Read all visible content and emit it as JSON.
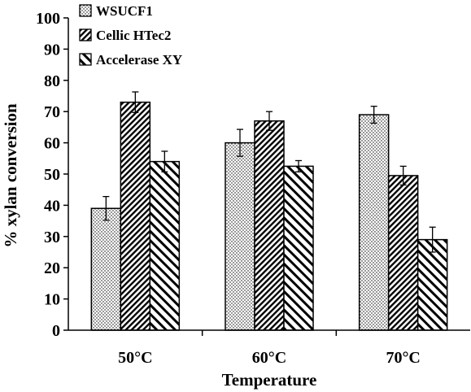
{
  "chart_data": {
    "type": "bar",
    "title": "",
    "xlabel": "Temperature",
    "ylabel": "% xylan conversion",
    "ylim": [
      0,
      100
    ],
    "yticks": [
      0,
      10,
      20,
      30,
      40,
      50,
      60,
      70,
      80,
      90,
      100
    ],
    "categories": [
      "50°C",
      "60°C",
      "70°C"
    ],
    "series": [
      {
        "name": "WSUCF1",
        "pattern": "dots",
        "values": [
          39,
          60,
          69
        ],
        "errors": [
          3.8,
          4.3,
          2.7
        ]
      },
      {
        "name": "Cellic HTec2",
        "pattern": "diagonal-dense",
        "values": [
          73,
          67,
          49.5
        ],
        "errors": [
          3.3,
          3.0,
          3.0
        ]
      },
      {
        "name": "Accelerase XY",
        "pattern": "diagonal-wide",
        "values": [
          54,
          52.5,
          29
        ],
        "errors": [
          3.3,
          1.8,
          4.0
        ]
      }
    ],
    "grid": false,
    "legend_position": "top-left",
    "colors": {
      "bar_stroke": "#000000",
      "background": "#ffffff"
    }
  }
}
